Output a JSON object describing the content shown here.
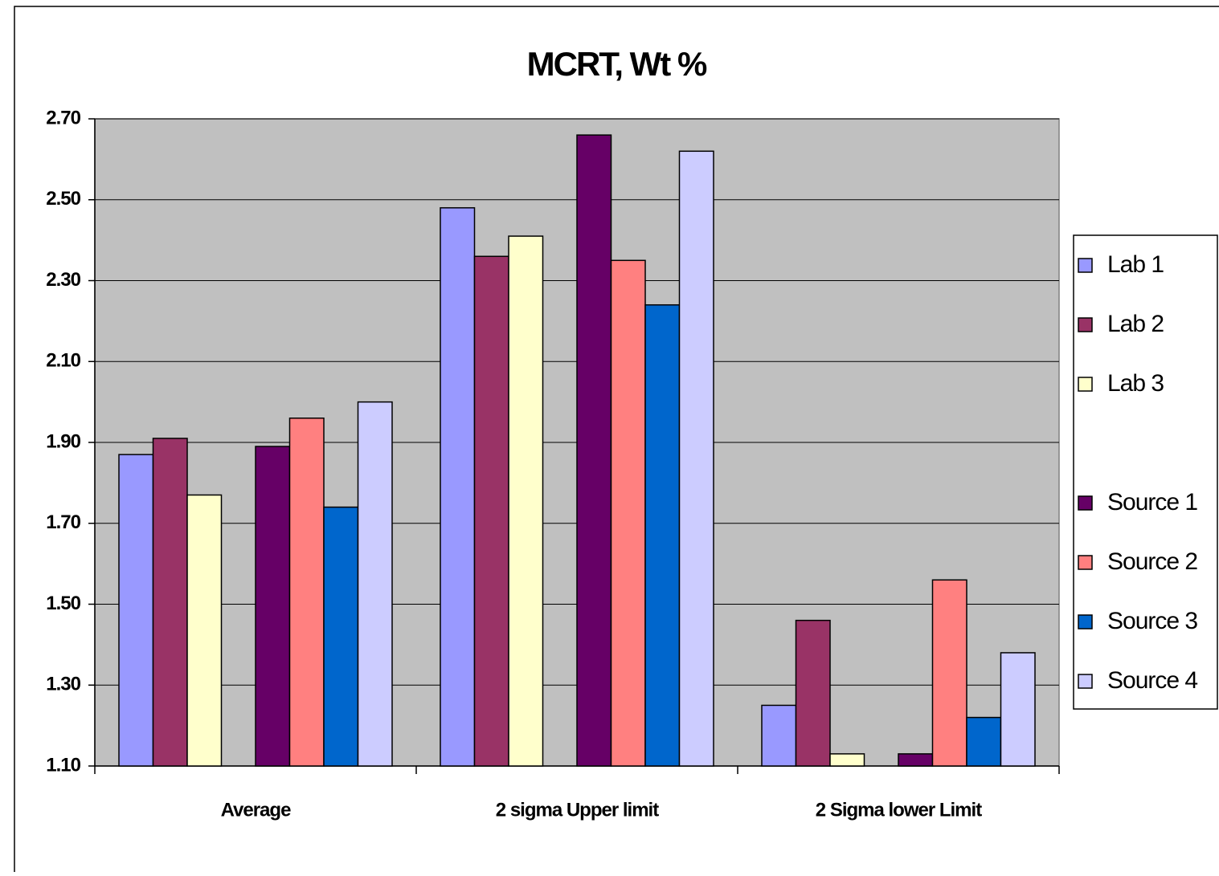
{
  "chart_data": {
    "type": "bar",
    "title": "MCRT, Wt %",
    "categories": [
      "Average",
      "2 sigma Upper limit",
      "2 Sigma lower Limit"
    ],
    "series": [
      {
        "name": "Lab 1",
        "color": "#9999ff",
        "values": [
          1.87,
          2.48,
          1.25
        ]
      },
      {
        "name": "Lab 2",
        "color": "#993366",
        "values": [
          1.91,
          2.36,
          1.46
        ]
      },
      {
        "name": "Lab 3",
        "color": "#ffffcc",
        "values": [
          1.77,
          2.41,
          1.13
        ]
      },
      {
        "name": "Source 1",
        "color": "#660066",
        "values": [
          1.89,
          2.66,
          1.13
        ]
      },
      {
        "name": "Source 2",
        "color": "#ff8080",
        "values": [
          1.96,
          2.35,
          1.56
        ]
      },
      {
        "name": "Source 3",
        "color": "#0066cc",
        "values": [
          1.74,
          2.24,
          1.22
        ]
      },
      {
        "name": "Source 4",
        "color": "#ccccff",
        "values": [
          2.0,
          2.62,
          1.38
        ]
      }
    ],
    "ylim": [
      1.1,
      2.7
    ],
    "yticks": [
      {
        "value": 1.1,
        "label": "1.10"
      },
      {
        "value": 1.3,
        "label": "1.30"
      },
      {
        "value": 1.5,
        "label": "1.50"
      },
      {
        "value": 1.7,
        "label": "1.70"
      },
      {
        "value": 1.9,
        "label": "1.90"
      },
      {
        "value": 2.1,
        "label": "2.10"
      },
      {
        "value": 2.3,
        "label": "2.30"
      },
      {
        "value": 2.5,
        "label": "2.50"
      },
      {
        "value": 2.7,
        "label": "2.70"
      }
    ],
    "grid": true,
    "plot_background": "#c0c0c0",
    "legend": "right"
  }
}
